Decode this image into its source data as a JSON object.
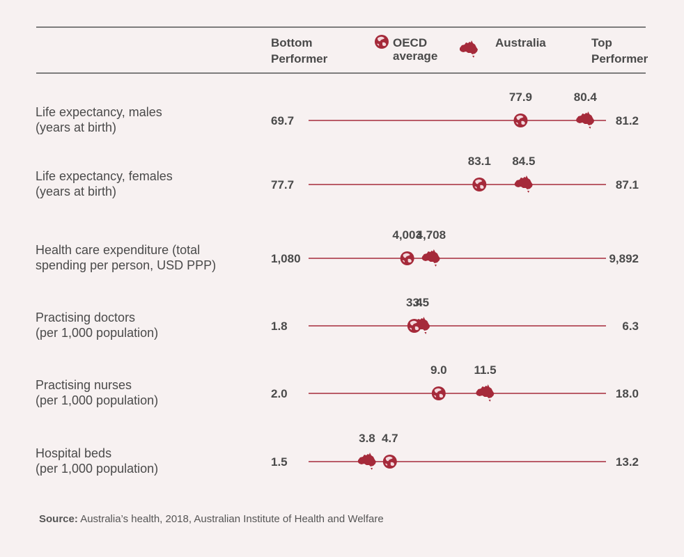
{
  "header": {
    "bottom": [
      "Bottom",
      "Performer"
    ],
    "oecd": [
      "OECD",
      "average"
    ],
    "australia": "Australia",
    "top": [
      "Top",
      "Performer"
    ]
  },
  "colors": {
    "accent": "#a52a3a",
    "text": "#4a4a4a",
    "rule": "#555555",
    "background": "#f7f1f1"
  },
  "icons": {
    "oecd": "globe-icon",
    "australia": "australia-map-icon"
  },
  "chart_data": {
    "type": "dot-range",
    "rows": [
      {
        "label": [
          "Life expectancy, males",
          "(years at birth)"
        ],
        "bottom": 69.7,
        "top": 81.2,
        "oecd": 77.9,
        "australia": 80.4,
        "bottom_text": "69.7",
        "top_text": "81.2",
        "oecd_text": "77.9",
        "australia_text": "80.4"
      },
      {
        "label": [
          "Life expectancy, females",
          "(years at birth)"
        ],
        "bottom": 77.7,
        "top": 87.1,
        "oecd": 83.1,
        "australia": 84.5,
        "bottom_text": "77.7",
        "top_text": "87.1",
        "oecd_text": "83.1",
        "australia_text": "84.5"
      },
      {
        "label": [
          "Health care expenditure (total",
          "spending per person, USD PPP)"
        ],
        "bottom": 1080,
        "top": 9892,
        "oecd": 4003,
        "australia": 4708,
        "bottom_text": "1,080",
        "top_text": "9,892",
        "oecd_text": "4,003",
        "australia_text": "4,708"
      },
      {
        "label": [
          "Practising doctors",
          "(per 1,000 population)"
        ],
        "bottom": 1.8,
        "top": 6.3,
        "oecd": 3.4,
        "australia": 3.5,
        "bottom_text": "1.8",
        "top_text": "6.3",
        "oecd_text": "3.4",
        "australia_text": "3.5"
      },
      {
        "label": [
          "Practising nurses",
          "(per 1,000 population)"
        ],
        "bottom": 2.0,
        "top": 18.0,
        "oecd": 9.0,
        "australia": 11.5,
        "bottom_text": "2.0",
        "top_text": "18.0",
        "oecd_text": "9.0",
        "australia_text": "11.5"
      },
      {
        "label": [
          "Hospital beds",
          "(per 1,000 population)"
        ],
        "bottom": 1.5,
        "top": 13.2,
        "oecd": 4.7,
        "australia": 3.8,
        "bottom_text": "1.5",
        "top_text": "13.2",
        "oecd_text": "4.7",
        "australia_text": "3.8"
      }
    ]
  },
  "source": {
    "label": "Source:",
    "text": " Australia’s health, 2018, Australian Institute of Health and Welfare"
  }
}
